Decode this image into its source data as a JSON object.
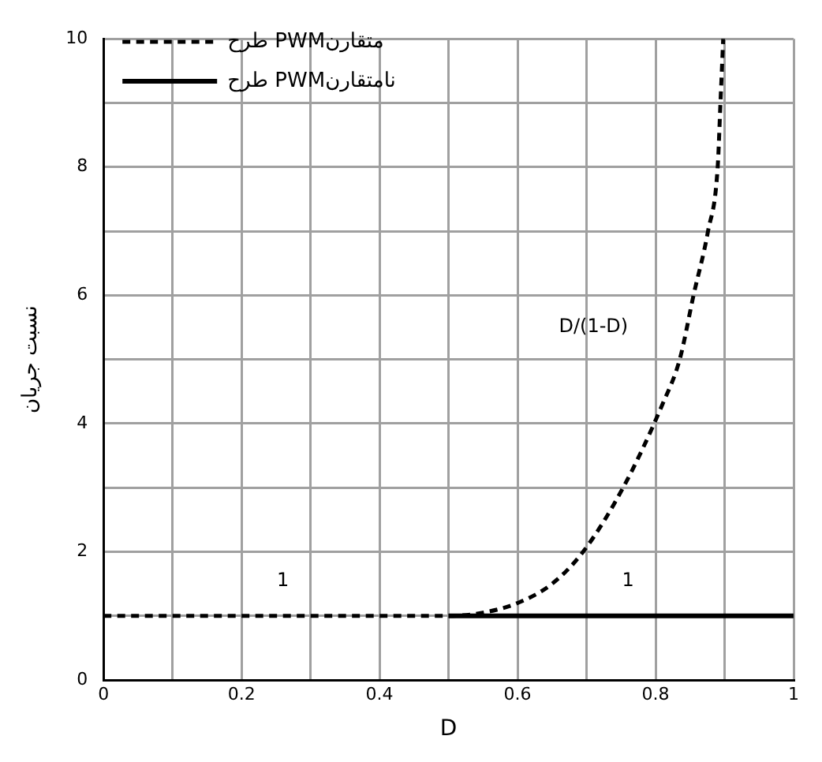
{
  "chart_data": {
    "type": "line",
    "xlabel": "D",
    "ylabel": "نسبت جریان",
    "xlim": [
      0,
      1
    ],
    "ylim": [
      0,
      10
    ],
    "xticks": [
      0,
      {
        "value": 0.1,
        "label": null
      },
      0.2,
      {
        "value": 0.3,
        "label": null
      },
      0.4,
      {
        "value": 0.5,
        "label": null
      },
      0.6,
      {
        "value": 0.7,
        "label": null
      },
      0.8,
      {
        "value": 0.9,
        "label": null
      },
      1
    ],
    "yticks": [
      0,
      {
        "value": 1,
        "label": null
      },
      2,
      {
        "value": 3,
        "label": null
      },
      4,
      {
        "value": 5,
        "label": null
      },
      6,
      {
        "value": 7,
        "label": null
      },
      8,
      {
        "value": 9,
        "label": null
      },
      10
    ],
    "grid": true,
    "legend": "top left",
    "marker": "none",
    "series": [
      {
        "name": "طرح PWMمتقارن",
        "color": "#000000",
        "line_style": "dashed",
        "x": [
          0,
          0.5,
          0.55,
          0.6,
          0.65,
          0.695,
          0.753,
          0.81,
          0.835,
          0.855,
          0.876,
          0.89,
          0.894,
          0.898
        ],
        "values": [
          1,
          1,
          1.05,
          1.2,
          1.5,
          2,
          3,
          4.3,
          5,
          6,
          7,
          8,
          9,
          10
        ]
      },
      {
        "name": "طرح PWMنامتقارن",
        "color": "#000000",
        "line_style": "solid",
        "x": [
          0.5,
          1
        ],
        "values": [
          1,
          1
        ]
      }
    ],
    "annotations": [
      {
        "text": "1",
        "x": 0.26,
        "y": 1
      },
      {
        "text": "1",
        "x": 0.76,
        "y": 1
      },
      "D/(1-D)"
    ]
  }
}
